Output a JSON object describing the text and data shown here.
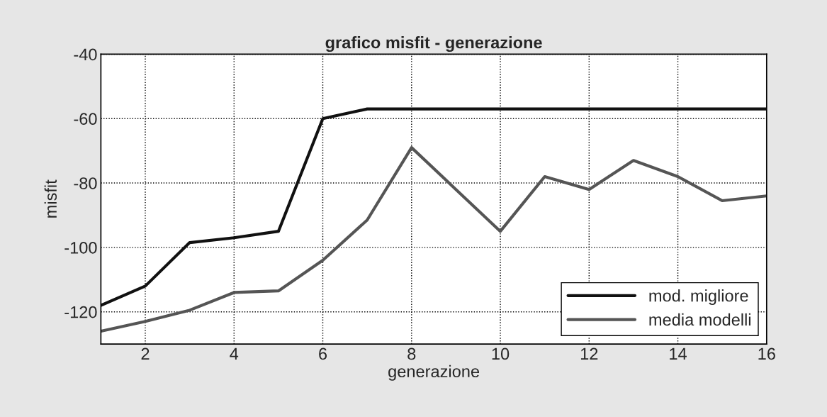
{
  "chart_data": {
    "type": "line",
    "title": "grafico misfit - generazione",
    "xlabel": "generazione",
    "ylabel": "misfit",
    "x": [
      1,
      2,
      3,
      4,
      5,
      6,
      7,
      8,
      9,
      10,
      11,
      12,
      13,
      14,
      15,
      16
    ],
    "series": [
      {
        "name": "mod. migliore",
        "color": "#111111",
        "values": [
          -118,
          -112,
          -98.5,
          -97,
          -95,
          -60,
          -57,
          -57,
          -57,
          -57,
          -57,
          -57,
          -57,
          -57,
          -57,
          -57
        ]
      },
      {
        "name": "media modelli",
        "color": "#555555",
        "values": [
          -126,
          -123,
          -119.5,
          -114,
          -113.5,
          -104,
          -91.5,
          -69,
          -82,
          -95,
          -78,
          -82,
          -73,
          -78,
          -85.5,
          -84
        ]
      }
    ],
    "xlim": [
      1,
      16
    ],
    "xticks": [
      2,
      4,
      6,
      8,
      10,
      12,
      14,
      16
    ],
    "ylim": [
      -130,
      -40
    ],
    "yticks": [
      -120,
      -100,
      -80,
      -60,
      -40
    ],
    "grid": true,
    "legend": "bottom right",
    "line_style": "solid",
    "marker": "none"
  }
}
